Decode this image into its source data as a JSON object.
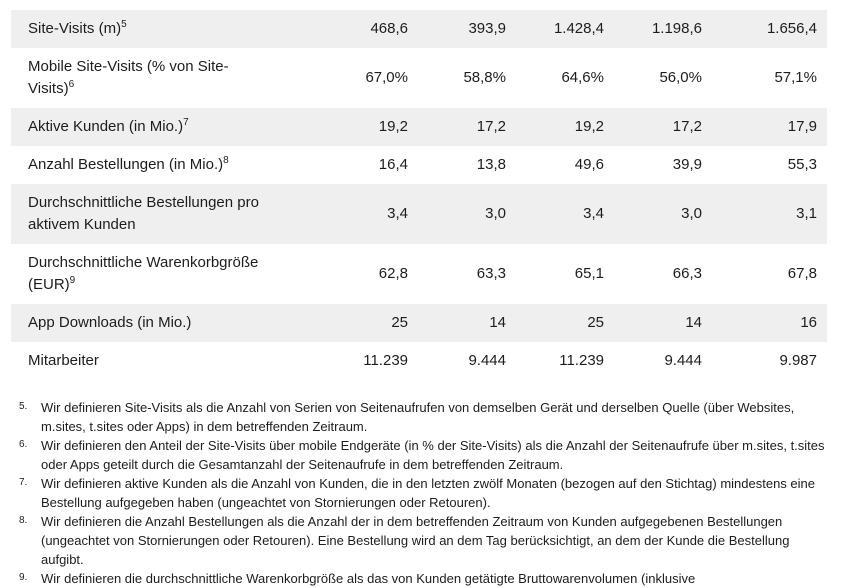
{
  "colors": {
    "row_shaded": "#efefef",
    "text": "#1d1d1b",
    "background": "#ffffff"
  },
  "table": {
    "rows": [
      {
        "label_lines": [
          "Site-Visits (m)"
        ],
        "sup": "5",
        "shaded": true,
        "values": [
          "468,6",
          "393,9",
          "1.428,4",
          "1.198,6",
          "1.656,4"
        ]
      },
      {
        "label_lines": [
          "Mobile Site-Visits (% von Site-",
          "Visits)"
        ],
        "sup": "6",
        "shaded": false,
        "values": [
          "67,0%",
          "58,8%",
          "64,6%",
          "56,0%",
          "57,1%"
        ]
      },
      {
        "label_lines": [
          "Aktive Kunden (in Mio.)"
        ],
        "sup": "7",
        "shaded": true,
        "values": [
          "19,2",
          "17,2",
          "19,2",
          "17,2",
          "17,9"
        ]
      },
      {
        "label_lines": [
          "Anzahl Bestellungen (in Mio.)"
        ],
        "sup": "8",
        "shaded": false,
        "values": [
          "16,4",
          "13,8",
          "49,6",
          "39,9",
          "55,3"
        ]
      },
      {
        "label_lines": [
          "Durchschnittliche Bestellungen pro",
          "aktivem Kunden"
        ],
        "sup": "",
        "shaded": true,
        "values": [
          "3,4",
          "3,0",
          "3,4",
          "3,0",
          "3,1"
        ]
      },
      {
        "label_lines": [
          "Durchschnittliche Warenkorbgröße",
          "(EUR)"
        ],
        "sup": "9",
        "shaded": false,
        "values": [
          "62,8",
          "63,3",
          "65,1",
          "66,3",
          "67,8"
        ]
      },
      {
        "label_lines": [
          "App Downloads (in Mio.)"
        ],
        "sup": "",
        "shaded": true,
        "values": [
          "25",
          "14",
          "25",
          "14",
          "16"
        ]
      },
      {
        "label_lines": [
          "Mitarbeiter"
        ],
        "sup": "",
        "shaded": false,
        "values": [
          "11.239",
          "9.444",
          "11.239",
          "9.444",
          "9.987"
        ]
      }
    ]
  },
  "footnotes": [
    {
      "marker": "5.",
      "text": "Wir definieren Site-Visits als die Anzahl von Serien von Seitenaufrufen von demselben Gerät und derselben Quelle (über Websites, m.sites, t.sites oder Apps) in dem betreffenden Zeitraum."
    },
    {
      "marker": "6.",
      "text": "Wir definieren den Anteil der Site-Visits über mobile Endgeräte (in % der Site-Visits) als die Anzahl der Seitenaufrufe über m.sites, t.sites oder Apps geteilt durch die Gesamtanzahl der Seitenaufrufe in dem betreffenden Zeitraum."
    },
    {
      "marker": "7.",
      "text": "Wir definieren aktive Kunden als die Anzahl von Kunden, die in den letzten zwölf Monaten (bezogen auf den Stichtag) mindestens eine Bestellung aufgegeben haben (ungeachtet von Stornierungen oder Retouren)."
    },
    {
      "marker": "8.",
      "text": "Wir definieren die Anzahl Bestellungen als die Anzahl der in dem betreffenden Zeitraum von Kunden aufgegebenen Bestellungen (ungeachtet von Stornierungen oder Retouren). Eine Bestellung wird an dem Tag berücksichtigt, an dem der Kunde die Bestellung aufgibt."
    },
    {
      "marker": "9.",
      "text": "Wir definieren die durchschnittliche Warenkorbgröße als das von Kunden getätigte Bruttowarenvolumen (inklusive"
    }
  ]
}
